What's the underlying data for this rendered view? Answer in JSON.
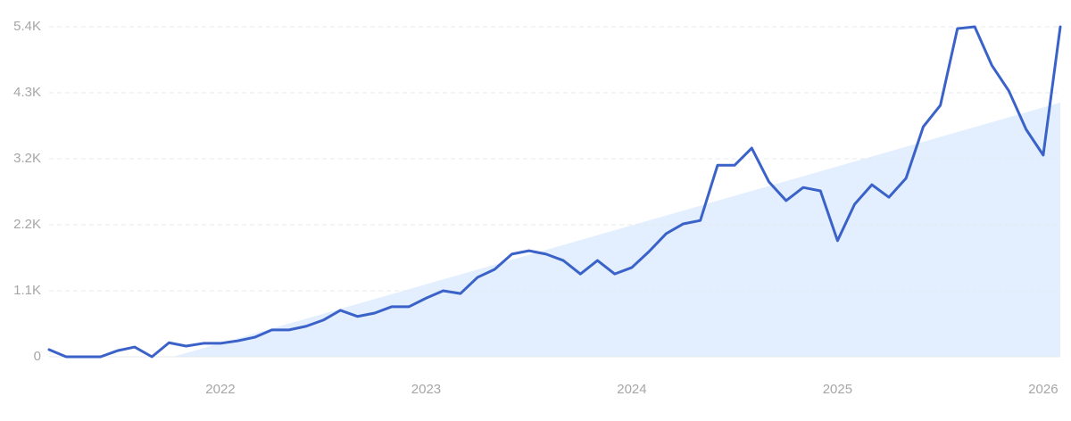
{
  "chart_data": {
    "type": "line",
    "x": [
      2021.167,
      2021.25,
      2021.333,
      2021.417,
      2021.5,
      2021.583,
      2021.667,
      2021.75,
      2021.833,
      2021.917,
      2022,
      2022.083,
      2022.167,
      2022.25,
      2022.333,
      2022.417,
      2022.5,
      2022.583,
      2022.667,
      2022.75,
      2022.833,
      2022.917,
      2023,
      2023.083,
      2023.167,
      2023.25,
      2023.333,
      2023.417,
      2023.5,
      2023.583,
      2023.667,
      2023.75,
      2023.833,
      2023.917,
      2024,
      2024.083,
      2024.167,
      2024.25,
      2024.333,
      2024.417,
      2024.5,
      2024.583,
      2024.667,
      2024.75,
      2024.833,
      2024.917,
      2025,
      2025.083,
      2025.167,
      2025.25,
      2025.333,
      2025.417,
      2025.5,
      2025.583,
      2025.667,
      2025.75,
      2025.833,
      2025.917,
      2026,
      2026.083
    ],
    "values": [
      117,
      0,
      0,
      0,
      100,
      160,
      0,
      230,
      175,
      220,
      220,
      260,
      320,
      440,
      440,
      500,
      600,
      760,
      660,
      715,
      820,
      820,
      960,
      1080,
      1035,
      1300,
      1430,
      1680,
      1735,
      1680,
      1575,
      1355,
      1575,
      1355,
      1460,
      1720,
      2015,
      2175,
      2230,
      3135,
      3135,
      3415,
      2860,
      2555,
      2770,
      2715,
      1900,
      2495,
      2815,
      2610,
      2920,
      3765,
      4115,
      5370,
      5400,
      4770,
      4350,
      3720,
      3300,
      5400
    ],
    "color": "#3a62c8",
    "trend": {
      "x": [
        2021.77,
        2026.083
      ],
      "values": [
        0,
        4160
      ],
      "color": "#e3efff"
    },
    "xlim": [
      2021.167,
      2026.083
    ],
    "xticks": [
      2022,
      2023,
      2024,
      2025,
      2026
    ],
    "ylim": [
      0,
      5400
    ],
    "yticks": [
      0,
      {
        "value": 1080,
        "label": "1.1K"
      },
      {
        "value": 2160,
        "label": "2.2K"
      },
      {
        "value": 3240,
        "label": "3.2K"
      },
      {
        "value": 4320,
        "label": "4.3K"
      },
      {
        "value": 5400,
        "label": "5.4K"
      }
    ],
    "grid": true
  }
}
